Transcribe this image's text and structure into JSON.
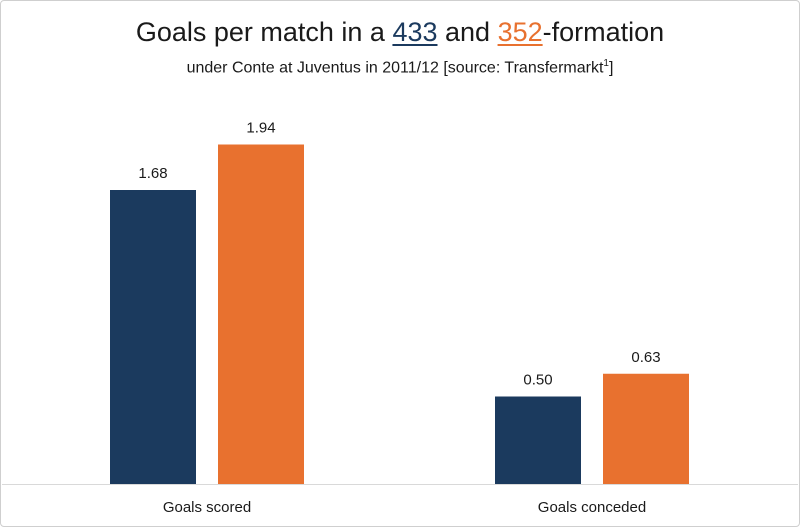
{
  "title": {
    "prefix": "Goals per match in a ",
    "series_a": "433",
    "middle": " and ",
    "series_b": "352",
    "suffix": "-formation"
  },
  "subtitle": {
    "text": "under Conte at Juventus in 2011/12 [source: Transfermarkt",
    "superscript": "1",
    "closing": "]"
  },
  "colors": {
    "series_433": "#1b3a5e",
    "series_352": "#e8712f",
    "axis": "#d9d9d9"
  },
  "chart_data": {
    "type": "bar",
    "title": "Goals per match in a 433 and 352-formation",
    "subtitle": "under Conte at Juventus in 2011/12 [source: Transfermarkt1]",
    "categories": [
      "Goals scored",
      "Goals conceded"
    ],
    "series": [
      {
        "name": "433",
        "values": [
          1.68,
          0.5
        ],
        "labels": [
          "1.68",
          "0.50"
        ]
      },
      {
        "name": "352",
        "values": [
          1.94,
          0.63
        ],
        "labels": [
          "1.94",
          "0.63"
        ]
      }
    ],
    "xlabel": "",
    "ylabel": "",
    "ylim": [
      0,
      2.2
    ],
    "grid": false,
    "legend": "none"
  }
}
